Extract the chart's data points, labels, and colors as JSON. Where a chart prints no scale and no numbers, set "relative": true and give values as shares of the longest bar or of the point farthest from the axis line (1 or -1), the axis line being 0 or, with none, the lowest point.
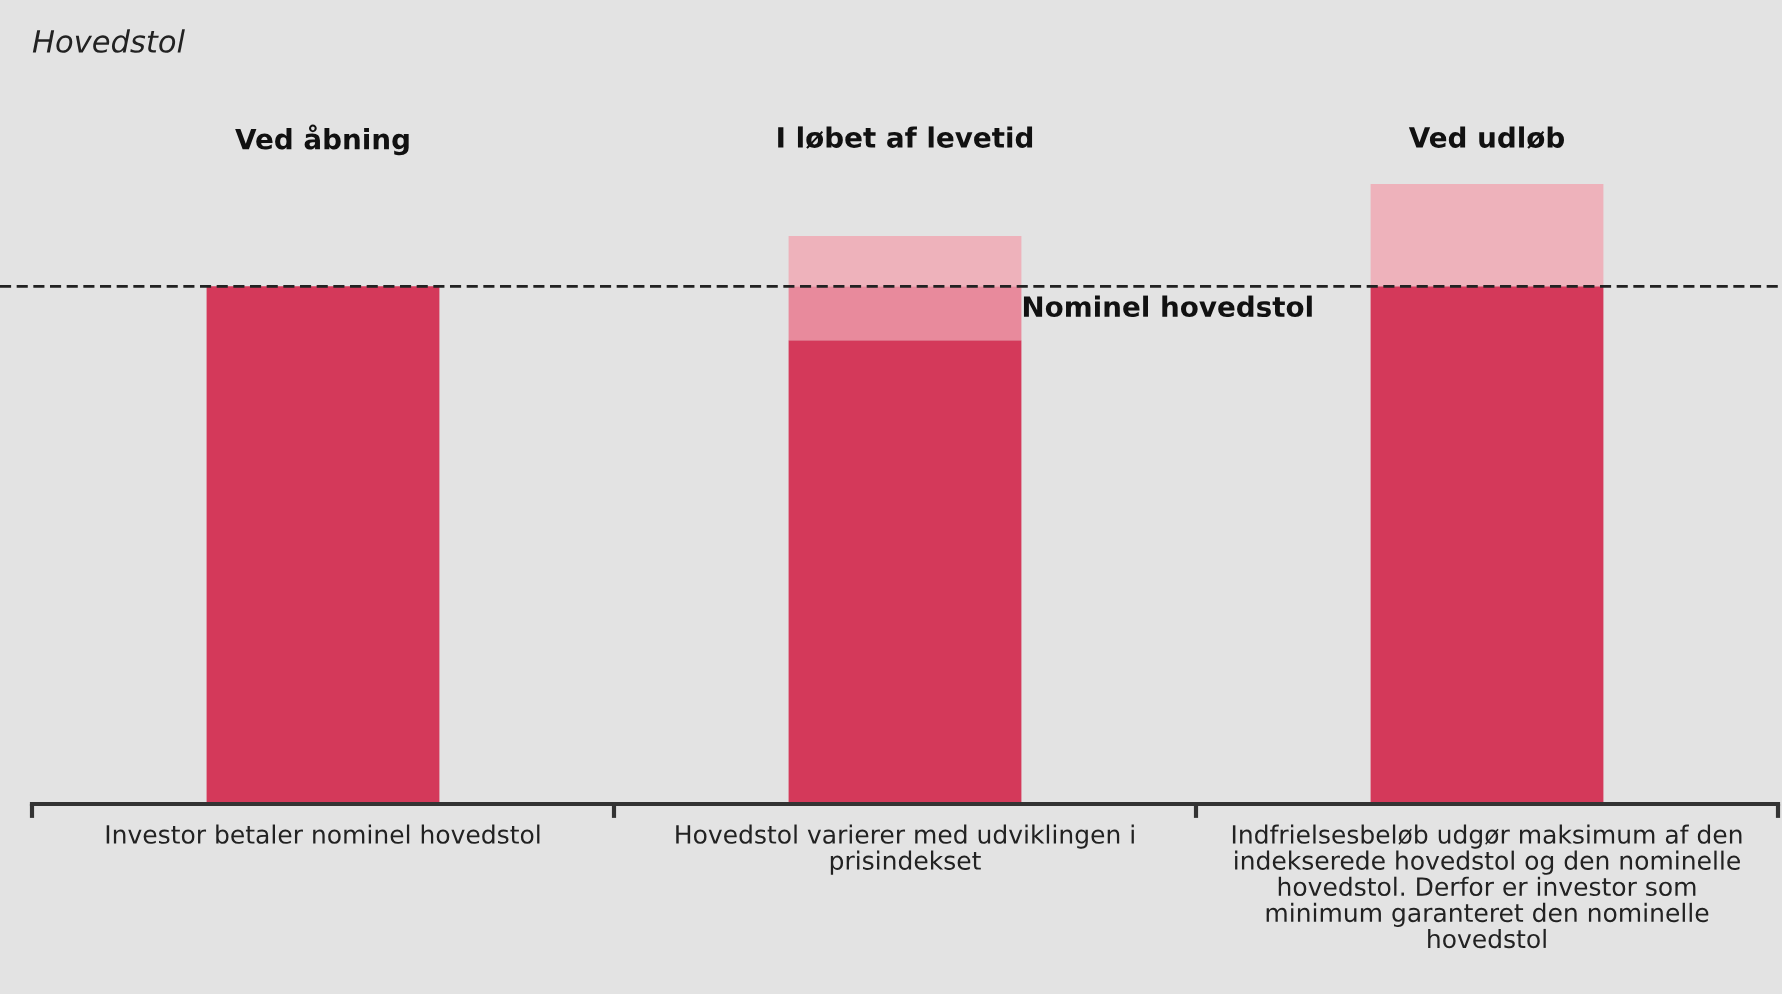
{
  "chart_data": {
    "type": "bar",
    "title": "Hovedstol",
    "relative": true,
    "stacked": true,
    "categories": [
      "Investor betaler nominel hovedstol",
      "Hovedstol varierer med udviklingen i prisindekset",
      "Indfrielsesbeløb udgør maksimum af den indekserede hovedstol og den nominelle hovedstol. Derfor er investor som minimum garanteret den nominelle hovedstol"
    ],
    "series": [
      {
        "color": "#d4395a",
        "values": [
          0.835,
          0.748,
          0.835
        ]
      },
      {
        "color": "#e88a9c",
        "values": [
          0,
          0.087,
          0
        ]
      },
      {
        "color": "#eeb2bb",
        "values": [
          0,
          0.081,
          0.165
        ]
      }
    ],
    "annotations": [
      "Ved åbning",
      "I løbet af levetid",
      "Ved udløb"
    ],
    "ref_lines": [
      {
        "axis": "y",
        "value": 0.835,
        "label": "Nominel hovedstol",
        "color": "#222222",
        "line_style": "dashed"
      }
    ],
    "grid": false,
    "legend": false
  }
}
